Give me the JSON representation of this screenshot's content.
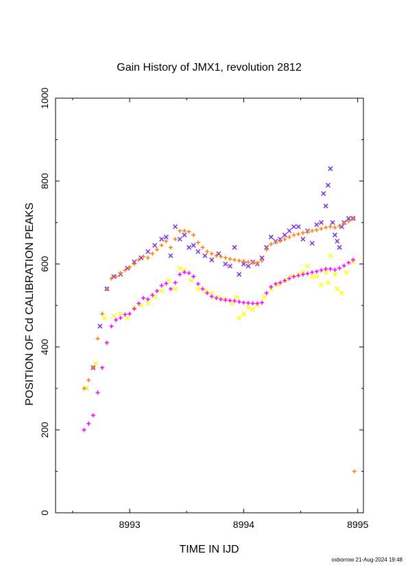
{
  "chart_data": {
    "type": "scatter",
    "title": "Gain History of JMX1, revolution 2812",
    "xlabel": "TIME IN IJD",
    "ylabel": "POSITION OF Cd CALIBRATION PEAKS",
    "footer": "oxborrow 21-Aug-2024 19:48",
    "xlim": [
      8992.35,
      8995.05
    ],
    "ylim": [
      0,
      1000
    ],
    "xticks": [
      8993,
      8994,
      8995
    ],
    "yticks": [
      0,
      200,
      400,
      600,
      800,
      1000
    ],
    "grid": false,
    "legend": "none",
    "series": [
      {
        "marker": "x",
        "color": "#7b2fe0",
        "x": [
          8992.62,
          8992.68,
          8992.74,
          8992.8,
          8992.86,
          8992.92,
          8992.98,
          8993.04,
          8993.1,
          8993.16,
          8993.22,
          8993.28,
          8993.32,
          8993.36,
          8993.4,
          8993.44,
          8993.48,
          8993.52,
          8993.56,
          8993.6,
          8993.66,
          8993.72,
          8993.78,
          8993.84,
          8993.88,
          8993.92,
          8993.96,
          8994.0,
          8994.04,
          8994.08,
          8994.12,
          8994.16,
          8994.2,
          8994.24,
          8994.28,
          8994.32,
          8994.36,
          8994.4,
          8994.44,
          8994.48,
          8994.52,
          8994.56,
          8994.6,
          8994.64,
          8994.68,
          8994.7,
          8994.72,
          8994.74,
          8994.76,
          8994.78,
          8994.8,
          8994.82,
          8994.84,
          8994.86,
          8994.88,
          8994.92,
          8994.96
        ],
        "y": [
          300,
          350,
          450,
          540,
          570,
          575,
          590,
          605,
          615,
          630,
          645,
          660,
          665,
          620,
          690,
          660,
          670,
          640,
          645,
          630,
          620,
          610,
          625,
          600,
          595,
          640,
          575,
          600,
          595,
          605,
          600,
          615,
          640,
          665,
          655,
          660,
          670,
          680,
          690,
          690,
          660,
          680,
          650,
          695,
          700,
          770,
          740,
          790,
          830,
          700,
          670,
          655,
          640,
          690,
          700,
          710,
          710
        ]
      },
      {
        "marker": "x",
        "color": "#ffff00",
        "x": [
          8992.62,
          8992.7,
          8992.78,
          8992.86,
          8992.92,
          8992.98,
          8993.04,
          8993.1,
          8993.16,
          8993.22,
          8993.28,
          8993.34,
          8993.4,
          8993.44,
          8993.48,
          8993.54,
          8993.6,
          8993.66,
          8993.72,
          8993.78,
          8993.84,
          8993.9,
          8993.94,
          8993.96,
          8994.0,
          8994.04,
          8994.08,
          8994.12,
          8994.18,
          8994.24,
          8994.3,
          8994.36,
          8994.42,
          8994.48,
          8994.52,
          8994.56,
          8994.6,
          8994.64,
          8994.68,
          8994.72,
          8994.74,
          8994.76,
          8994.8,
          8994.82,
          8994.86,
          8994.9,
          8994.96
        ],
        "y": [
          300,
          360,
          470,
          475,
          480,
          470,
          495,
          500,
          505,
          520,
          535,
          560,
          540,
          590,
          585,
          560,
          540,
          535,
          530,
          520,
          515,
          505,
          520,
          470,
          480,
          495,
          490,
          500,
          520,
          540,
          550,
          560,
          570,
          575,
          580,
          595,
          570,
          570,
          550,
          580,
          555,
          620,
          575,
          540,
          530,
          580,
          605
        ]
      },
      {
        "marker": "+",
        "color": "#ff7f0e",
        "x": [
          8992.6,
          8992.64,
          8992.68,
          8992.72,
          8992.76,
          8992.8,
          8992.84,
          8992.88,
          8992.92,
          8992.96,
          8993.0,
          8993.04,
          8993.08,
          8993.12,
          8993.16,
          8993.2,
          8993.24,
          8993.28,
          8993.32,
          8993.36,
          8993.4,
          8993.44,
          8993.48,
          8993.52,
          8993.56,
          8993.6,
          8993.64,
          8993.68,
          8993.72,
          8993.76,
          8993.8,
          8993.84,
          8993.88,
          8993.92,
          8993.96,
          8994.0,
          8994.04,
          8994.08,
          8994.12,
          8994.16,
          8994.2,
          8994.24,
          8994.28,
          8994.32,
          8994.36,
          8994.4,
          8994.44,
          8994.48,
          8994.52,
          8994.56,
          8994.6,
          8994.64,
          8994.68,
          8994.72,
          8994.76,
          8994.8,
          8994.84,
          8994.88,
          8994.92,
          8994.96,
          8994.97
        ],
        "y": [
          300,
          320,
          350,
          420,
          480,
          540,
          565,
          570,
          578,
          585,
          592,
          600,
          610,
          618,
          615,
          625,
          635,
          645,
          655,
          640,
          660,
          680,
          680,
          678,
          670,
          652,
          640,
          630,
          625,
          620,
          618,
          615,
          612,
          610,
          608,
          607,
          605,
          603,
          603,
          608,
          635,
          648,
          652,
          655,
          660,
          665,
          670,
          672,
          675,
          677,
          680,
          682,
          685,
          688,
          690,
          688,
          692,
          698,
          703,
          710,
          100
        ]
      },
      {
        "marker": "+",
        "color": "#ff00ff",
        "x": [
          8992.6,
          8992.64,
          8992.68,
          8992.72,
          8992.76,
          8992.8,
          8992.84,
          8992.88,
          8992.92,
          8992.96,
          8993.0,
          8993.04,
          8993.08,
          8993.12,
          8993.16,
          8993.2,
          8993.24,
          8993.28,
          8993.32,
          8993.36,
          8993.4,
          8993.44,
          8993.48,
          8993.52,
          8993.56,
          8993.6,
          8993.64,
          8993.68,
          8993.72,
          8993.76,
          8993.8,
          8993.84,
          8993.88,
          8993.92,
          8993.96,
          8994.0,
          8994.04,
          8994.08,
          8994.12,
          8994.16,
          8994.2,
          8994.24,
          8994.28,
          8994.32,
          8994.36,
          8994.4,
          8994.44,
          8994.48,
          8994.52,
          8994.56,
          8994.6,
          8994.64,
          8994.68,
          8994.72,
          8994.76,
          8994.8,
          8994.84,
          8994.88,
          8994.92,
          8994.96
        ],
        "y": [
          200,
          215,
          235,
          290,
          350,
          410,
          450,
          465,
          470,
          478,
          480,
          492,
          505,
          518,
          515,
          525,
          535,
          548,
          553,
          540,
          555,
          575,
          580,
          578,
          570,
          552,
          540,
          530,
          522,
          518,
          515,
          513,
          512,
          511,
          509,
          507,
          506,
          505,
          505,
          507,
          530,
          545,
          552,
          555,
          560,
          565,
          570,
          572,
          575,
          577,
          580,
          582,
          585,
          588,
          588,
          586,
          590,
          596,
          603,
          610
        ]
      }
    ]
  }
}
